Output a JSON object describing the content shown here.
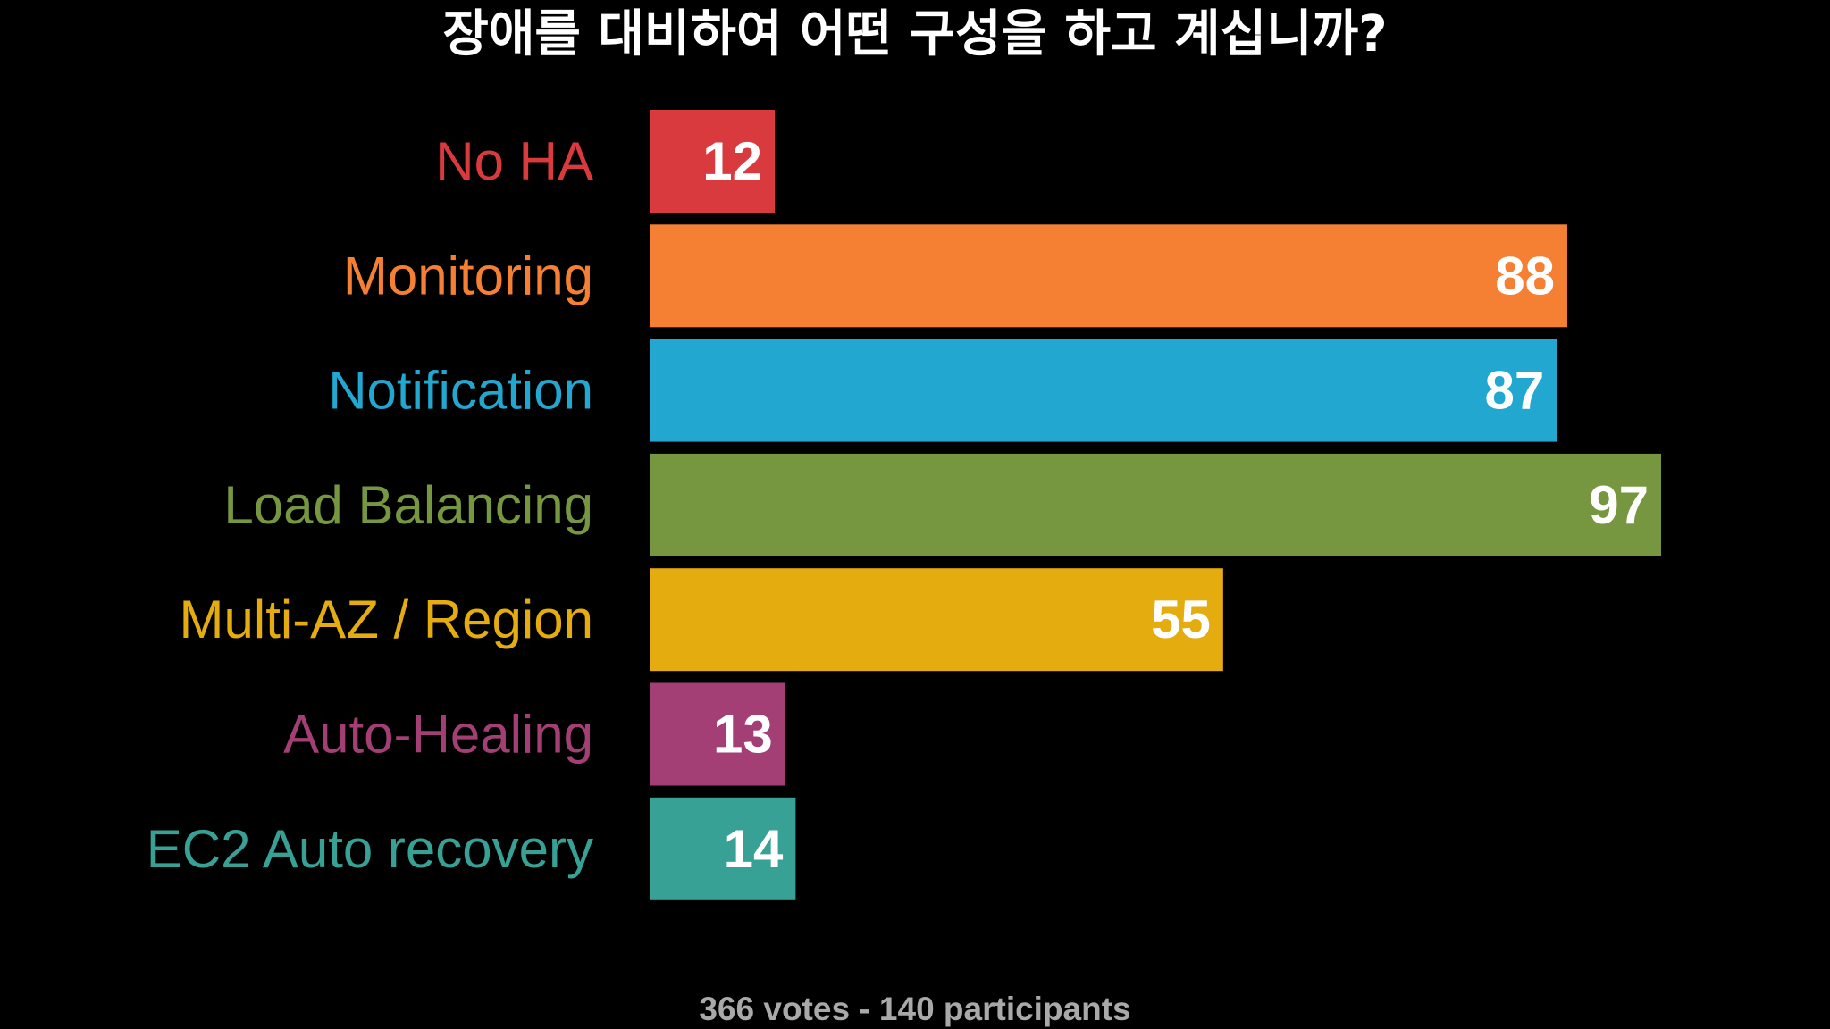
{
  "chart_data": {
    "type": "bar",
    "orientation": "horizontal",
    "title": "장애를 대비하여 어떤 구성을 하고 계십니까?",
    "categories": [
      "No HA",
      "Monitoring",
      "Notification",
      "Load Balancing",
      "Multi-AZ / Region",
      "Auto-Healing",
      "EC2 Auto recovery"
    ],
    "values": [
      12,
      88,
      87,
      97,
      55,
      13,
      14
    ],
    "colors": [
      "#d93a3e",
      "#f58034",
      "#22a7d0",
      "#76973f",
      "#e4ac0e",
      "#a43f76",
      "#36a194"
    ],
    "xlim": [
      0,
      97
    ],
    "grid": false,
    "legend": "none",
    "data_labels": "inside-end",
    "background": "#000000",
    "value_label_color": "#ffffff"
  },
  "footer": {
    "summary": "366 votes - 140 participants"
  }
}
